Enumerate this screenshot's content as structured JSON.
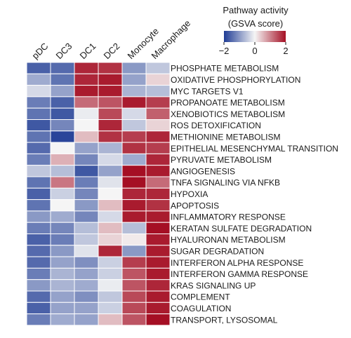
{
  "chart_data": {
    "type": "heatmap",
    "title": "",
    "columns": [
      "pDC",
      "DC3",
      "DC1",
      "DC2",
      "Monocyte",
      "Macrophage"
    ],
    "rows": [
      "PHOSPHATE METABOLISM",
      "OXIDATIVE PHOSPHORYLATION",
      "MYC TARGETS V1",
      "PROPANOATE METABOLISM",
      "XENOBIOTICS METABOLISM",
      "ROS DETOXIFICATION",
      "METHIONINE METABOLISM",
      "EPITHELIAL MESENCHYMAL TRANSITION",
      "PYRUVATE METABOLISM",
      "ANGIOGENESIS",
      "TNFA SIGNALING VIA NFKB",
      "HYPOXIA",
      "APOPTOSIS",
      "INFLAMMATORY RESPONSE",
      "KERATAN SULFATE DEGRADATION",
      "HYALURONAN METABOLISM",
      "SUGAR DEGRADATION",
      "INTERFERON ALPHA RESPONSE",
      "INTERFERON GAMMA RESPONSE",
      "KRAS SIGNALING UP",
      "COMPLEMENT",
      "COAGULATION",
      "TRANSPORT, LYSOSOMAL"
    ],
    "values": [
      [
        -1.6,
        -1.5,
        1.8,
        1.7,
        -1.0,
        -0.5
      ],
      [
        -0.8,
        -1.4,
        1.8,
        1.9,
        -0.9,
        0.3
      ],
      [
        -0.3,
        -0.9,
        1.9,
        1.9,
        -0.7,
        -0.6
      ],
      [
        -1.3,
        -1.6,
        1.2,
        1.4,
        1.9,
        1.6
      ],
      [
        -1.4,
        -1.7,
        -0.1,
        1.5,
        -0.3,
        1.3
      ],
      [
        -1.7,
        -1.2,
        0.0,
        1.8,
        -0.5,
        0.3
      ],
      [
        -1.4,
        -1.9,
        0.5,
        1.7,
        1.6,
        1.8
      ],
      [
        -1.5,
        0.0,
        -0.9,
        -0.7,
        1.7,
        1.6
      ],
      [
        -1.3,
        0.6,
        -1.2,
        -0.3,
        -0.8,
        1.8
      ],
      [
        -0.5,
        -0.6,
        -1.7,
        -0.9,
        2.0,
        1.9
      ],
      [
        -1.4,
        1.1,
        -1.3,
        -0.2,
        2.0,
        1.2
      ],
      [
        -1.6,
        -0.4,
        -1.2,
        0.0,
        1.8,
        1.8
      ],
      [
        -1.4,
        0.0,
        -1.0,
        0.5,
        1.9,
        1.7
      ],
      [
        -1.0,
        -0.8,
        -1.2,
        -0.3,
        1.9,
        1.9
      ],
      [
        -1.3,
        -1.2,
        -0.6,
        0.5,
        -0.6,
        2.0
      ],
      [
        -1.6,
        -1.3,
        -0.5,
        0.3,
        0.1,
        1.9
      ],
      [
        -1.5,
        -1.0,
        -0.2,
        1.8,
        -1.0,
        1.9
      ],
      [
        -1.5,
        -0.9,
        -1.1,
        -0.4,
        1.6,
        1.9
      ],
      [
        -1.3,
        -0.7,
        -0.9,
        -0.4,
        1.4,
        1.9
      ],
      [
        -1.0,
        -0.7,
        -0.8,
        -0.1,
        1.4,
        1.8
      ],
      [
        -1.5,
        -0.9,
        -1.1,
        -0.5,
        1.5,
        1.9
      ],
      [
        -1.6,
        -0.9,
        -0.9,
        -0.4,
        1.5,
        1.9
      ],
      [
        -1.3,
        -0.8,
        -0.9,
        0.5,
        1.4,
        2.0
      ]
    ],
    "colorbar": {
      "title": "Pathway activity",
      "subtitle": "(GSVA score)",
      "min": -2,
      "max": 2,
      "ticks": [
        -2,
        0,
        2
      ],
      "tick_labels": [
        "−2",
        "0",
        "2"
      ],
      "colors": {
        "low": "#1f3c95",
        "mid": "#f5f5f5",
        "high": "#a50f24"
      }
    }
  }
}
